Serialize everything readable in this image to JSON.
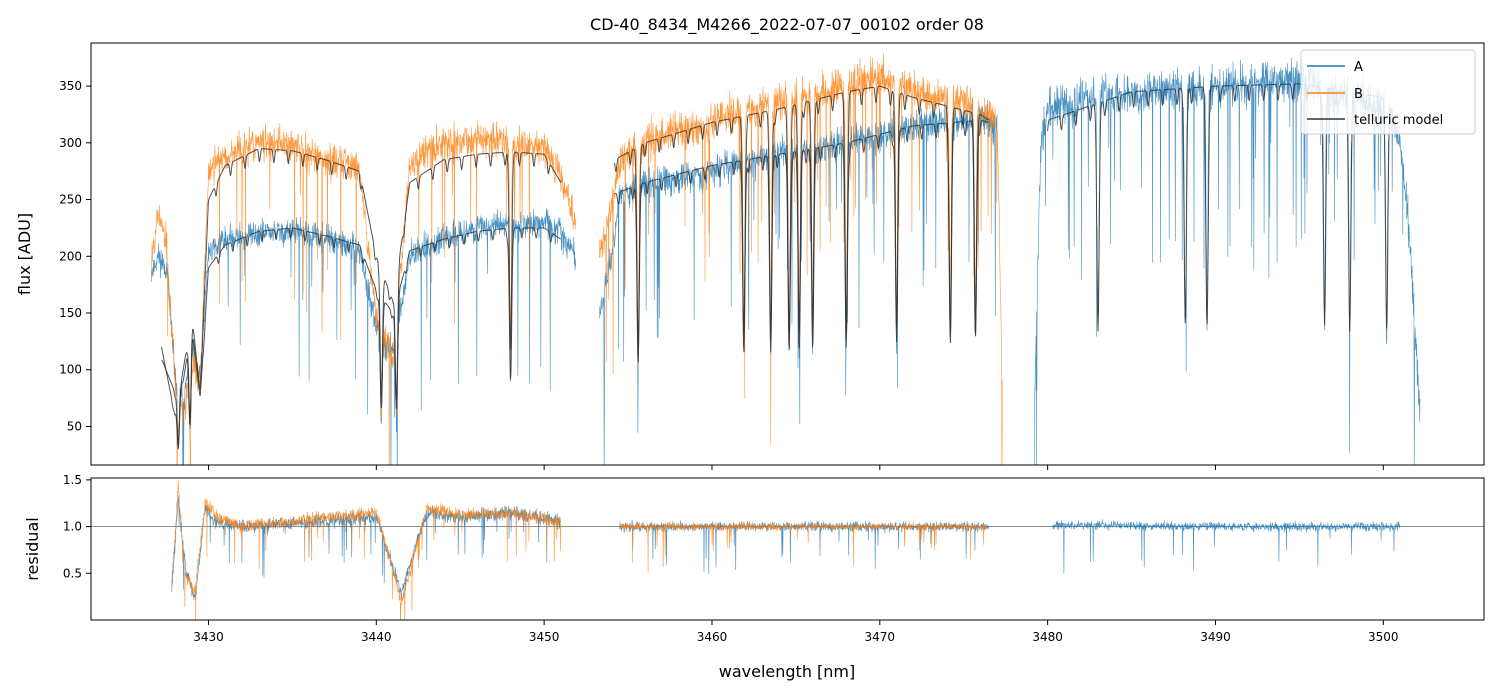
{
  "chart_data": {
    "type": "line",
    "title": "CD-40_8434_M4266_2022-07-07_00102  order 08",
    "colors": {
      "A": "#1f77b4",
      "B": "#ff7f0e",
      "model": "#333333",
      "ref": "#808080"
    },
    "legend": {
      "position": "top-right",
      "entries": [
        "A",
        "B",
        "telluric model"
      ]
    },
    "xlabel": "wavelength [nm]",
    "xlim": [
      3423,
      3506
    ],
    "xticks": [
      3430,
      3440,
      3450,
      3460,
      3470,
      3480,
      3490,
      3500
    ],
    "top": {
      "ylabel": "flux [ADU]",
      "ylim": [
        16,
        388
      ],
      "yticks": [
        50,
        100,
        150,
        200,
        250,
        300,
        350
      ],
      "series": [
        {
          "name": "A",
          "color": "#1f77b4",
          "segments": [
            {
              "range": [
                3426.6,
                3451.9
              ],
              "seed": 11,
              "noise": 12,
              "spikes": 0.025,
              "x": [
                3426.6,
                3427.0,
                3427.5,
                3428.0,
                3428.5,
                3429.0,
                3429.5,
                3430.0,
                3431.0,
                3433.0,
                3435.0,
                3437.0,
                3439.0,
                3440.0,
                3441.0,
                3442.0,
                3444.0,
                3446.0,
                3448.0,
                3450.0,
                3451.0,
                3451.9
              ],
              "y": [
                185,
                200,
                190,
                95,
                70,
                120,
                90,
                205,
                215,
                220,
                222,
                215,
                205,
                135,
                115,
                200,
                215,
                225,
                228,
                230,
                220,
                200
              ]
            },
            {
              "range": [
                3453.3,
                3477.0
              ],
              "seed": 23,
              "noise": 14,
              "spikes": 0.03,
              "x": [
                3453.3,
                3454.0,
                3454.5,
                3456.0,
                3460.0,
                3464.0,
                3468.0,
                3472.0,
                3476.0,
                3477.0
              ],
              "y": [
                150,
                200,
                255,
                262,
                275,
                290,
                300,
                315,
                322,
                315
              ]
            },
            {
              "range": [
                3479.2,
                3502.2
              ],
              "seed": 37,
              "noise": 18,
              "spikes": 0.04,
              "x": [
                3479.2,
                3479.6,
                3480.0,
                3485.0,
                3490.0,
                3495.0,
                3500.0,
                3501.0,
                3501.5,
                3502.2
              ],
              "y": [
                60,
                300,
                330,
                345,
                350,
                355,
                330,
                300,
                230,
                60
              ]
            }
          ]
        },
        {
          "name": "B",
          "color": "#ff7f0e",
          "segments": [
            {
              "range": [
                3426.6,
                3451.9
              ],
              "seed": 53,
              "noise": 15,
              "spikes": 0.025,
              "x": [
                3426.6,
                3427.0,
                3427.5,
                3428.0,
                3428.5,
                3429.0,
                3429.5,
                3430.0,
                3431.0,
                3433.0,
                3435.0,
                3437.0,
                3439.0,
                3440.0,
                3441.0,
                3442.0,
                3444.0,
                3446.0,
                3448.0,
                3450.0,
                3451.0,
                3451.9
              ],
              "y": [
                200,
                240,
                210,
                95,
                55,
                110,
                90,
                275,
                290,
                300,
                298,
                285,
                280,
                145,
                110,
                280,
                300,
                305,
                300,
                295,
                270,
                230
              ]
            },
            {
              "range": [
                3453.3,
                3477.3
              ],
              "seed": 71,
              "noise": 16,
              "spikes": 0.03,
              "x": [
                3453.3,
                3454.0,
                3454.5,
                3456.0,
                3460.0,
                3464.0,
                3468.0,
                3470.0,
                3472.0,
                3476.0,
                3477.0,
                3477.3
              ],
              "y": [
                200,
                240,
                285,
                300,
                318,
                335,
                350,
                360,
                345,
                330,
                320,
                80
              ]
            }
          ]
        },
        {
          "name": "telluric model",
          "color": "#333333",
          "segments": [
            {
              "range": [
                3427.2,
                3451.0
              ],
              "seed": 91,
              "noise": 0,
              "spikes": 0,
              "x": [
                3427.2,
                3428.0,
                3428.5,
                3429.0,
                3429.5,
                3430.0,
                3431.0,
                3433.0,
                3435.0,
                3437.0,
                3439.0,
                3440.0,
                3441.0,
                3442.0,
                3444.0,
                3446.0,
                3448.0,
                3450.0,
                3451.0
              ],
              "y": [
                110,
                80,
                90,
                140,
                75,
                190,
                210,
                222,
                225,
                218,
                210,
                170,
                150,
                205,
                215,
                222,
                225,
                225,
                215
              ]
            },
            {
              "range": [
                3427.2,
                3451.0
              ],
              "seed": 92,
              "noise": 0,
              "spikes": 0,
              "x": [
                3427.2,
                3428.0,
                3428.5,
                3429.0,
                3429.5,
                3430.0,
                3431.0,
                3433.0,
                3435.0,
                3437.0,
                3439.0,
                3440.0,
                3441.0,
                3442.0,
                3444.0,
                3446.0,
                3448.0,
                3450.0,
                3451.0
              ],
              "y": [
                120,
                60,
                100,
                150,
                80,
                250,
                280,
                295,
                293,
                285,
                275,
                200,
                160,
                265,
                285,
                290,
                292,
                290,
                265
              ]
            },
            {
              "range": [
                3454.2,
                3476.5
              ],
              "seed": 93,
              "noise": 0,
              "spikes": 0,
              "x": [
                3454.2,
                3456.0,
                3460.0,
                3464.0,
                3468.0,
                3472.0,
                3476.0,
                3476.5
              ],
              "y": [
                255,
                265,
                280,
                290,
                300,
                315,
                320,
                318
              ]
            },
            {
              "range": [
                3454.2,
                3476.5
              ],
              "seed": 94,
              "noise": 0,
              "spikes": 0,
              "x": [
                3454.2,
                3456.0,
                3460.0,
                3464.0,
                3468.0,
                3470.0,
                3472.0,
                3476.0,
                3476.5
              ],
              "y": [
                285,
                300,
                318,
                330,
                345,
                350,
                340,
                325,
                320
              ]
            },
            {
              "range": [
                3480.0,
                3501.0
              ],
              "seed": 95,
              "noise": 0,
              "spikes": 0,
              "x": [
                3480.0,
                3485.0,
                3490.0,
                3495.0,
                3500.0,
                3501.0
              ],
              "y": [
                320,
                345,
                350,
                352,
                340,
                320
              ]
            }
          ]
        }
      ],
      "deep_lines": [
        3428.2,
        3428.9,
        3440.3,
        3441.2,
        3448.0,
        3455.6,
        3461.9,
        3463.5,
        3464.6,
        3465.2,
        3466.0,
        3468.0,
        3471.0,
        3474.2,
        3475.7,
        3483.0,
        3488.2,
        3489.5,
        3496.5,
        3498.0,
        3500.2
      ]
    },
    "bottom": {
      "ylabel": "residual",
      "ylim": [
        0,
        1.52
      ],
      "yticks": [
        0.5,
        1.0,
        1.5
      ],
      "reference_y": 1.0,
      "series": [
        {
          "name": "A",
          "color": "#1f77b4",
          "segments": [
            {
              "range": [
                3427.8,
                3451.0
              ],
              "seed": 111,
              "noise": 0.07,
              "spikes": 0.03,
              "x": [
                3427.8,
                3428.2,
                3428.6,
                3429.2,
                3429.8,
                3430.5,
                3432.0,
                3436.0,
                3440.0,
                3441.5,
                3443.0,
                3445.0,
                3448.0,
                3451.0
              ],
              "y": [
                0.3,
                1.3,
                0.6,
                0.2,
                1.2,
                1.05,
                1.0,
                1.05,
                1.1,
                0.3,
                1.15,
                1.1,
                1.15,
                1.05
              ]
            },
            {
              "range": [
                3454.5,
                3476.5
              ],
              "seed": 122,
              "noise": 0.05,
              "spikes": 0.02,
              "x": [
                3454.5,
                3465.0,
                3476.5
              ],
              "y": [
                1.0,
                1.0,
                1.0
              ]
            },
            {
              "range": [
                3480.3,
                3501.0
              ],
              "seed": 133,
              "noise": 0.045,
              "spikes": 0.02,
              "x": [
                3480.3,
                3490.0,
                3501.0
              ],
              "y": [
                1.02,
                1.0,
                1.0
              ]
            }
          ]
        },
        {
          "name": "B",
          "color": "#ff7f0e",
          "segments": [
            {
              "range": [
                3427.8,
                3451.0
              ],
              "seed": 144,
              "noise": 0.07,
              "spikes": 0.03,
              "x": [
                3427.8,
                3428.2,
                3428.6,
                3429.2,
                3429.8,
                3430.5,
                3432.0,
                3436.0,
                3440.0,
                3441.5,
                3443.0,
                3445.0,
                3448.0,
                3451.0
              ],
              "y": [
                0.4,
                1.45,
                0.5,
                0.3,
                1.25,
                1.1,
                1.0,
                1.08,
                1.15,
                0.2,
                1.2,
                1.12,
                1.15,
                1.05
              ]
            },
            {
              "range": [
                3454.5,
                3476.3
              ],
              "seed": 155,
              "noise": 0.04,
              "spikes": 0.015,
              "x": [
                3454.5,
                3465.0,
                3476.3
              ],
              "y": [
                1.0,
                1.0,
                1.0
              ]
            }
          ]
        }
      ]
    }
  }
}
